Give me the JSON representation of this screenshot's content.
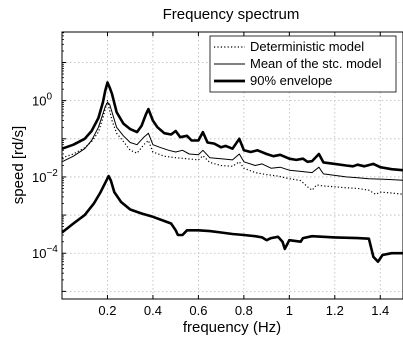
{
  "chart_data": {
    "type": "line",
    "title": "Frequency spectrum",
    "xlabel": "frequency (Hz)",
    "ylabel": "speed [rd/s]",
    "xlim": [
      0,
      1.5
    ],
    "ylim_log10": [
      -5.2,
      1.8
    ],
    "yscale": "log",
    "grid": true,
    "legend_position": "top-right",
    "x_ticks": [
      0.2,
      0.4,
      0.6,
      0.8,
      1.0,
      1.2,
      1.4
    ],
    "x_tick_labels": [
      "0.2",
      "0.4",
      "0.6",
      "0.8",
      "1",
      "1.2",
      "1.4"
    ],
    "y_ticks": [
      {
        "base": "10",
        "exp": "0",
        "value": 1
      },
      {
        "base": "10",
        "exp": "−2",
        "value": 0.01
      },
      {
        "base": "10",
        "exp": "−4",
        "value": 0.0001
      }
    ],
    "series": [
      {
        "name": "Deterministic model",
        "style": "dotted",
        "points": [
          [
            0.0,
            0.032
          ],
          [
            0.05,
            0.04
          ],
          [
            0.1,
            0.058
          ],
          [
            0.13,
            0.085
          ],
          [
            0.16,
            0.15
          ],
          [
            0.18,
            0.35
          ],
          [
            0.19,
            0.6
          ],
          [
            0.2,
            1.0
          ],
          [
            0.21,
            0.55
          ],
          [
            0.22,
            0.3
          ],
          [
            0.24,
            0.14
          ],
          [
            0.27,
            0.085
          ],
          [
            0.3,
            0.05
          ],
          [
            0.33,
            0.042
          ],
          [
            0.36,
            0.07
          ],
          [
            0.38,
            0.09
          ],
          [
            0.4,
            0.045
          ],
          [
            0.45,
            0.035
          ],
          [
            0.5,
            0.032
          ],
          [
            0.55,
            0.03
          ],
          [
            0.6,
            0.028
          ],
          [
            0.62,
            0.036
          ],
          [
            0.65,
            0.024
          ],
          [
            0.7,
            0.02
          ],
          [
            0.75,
            0.019
          ],
          [
            0.78,
            0.025
          ],
          [
            0.8,
            0.017
          ],
          [
            0.85,
            0.013
          ],
          [
            0.9,
            0.0115
          ],
          [
            0.95,
            0.0105
          ],
          [
            1.0,
            0.009
          ],
          [
            1.05,
            0.008
          ],
          [
            1.08,
            0.0055
          ],
          [
            1.1,
            0.0045
          ],
          [
            1.12,
            0.0062
          ],
          [
            1.15,
            0.0058
          ],
          [
            1.2,
            0.0055
          ],
          [
            1.25,
            0.0052
          ],
          [
            1.3,
            0.005
          ],
          [
            1.35,
            0.0045
          ],
          [
            1.38,
            0.0035
          ],
          [
            1.4,
            0.004
          ],
          [
            1.45,
            0.0038
          ],
          [
            1.5,
            0.0035
          ]
        ]
      },
      {
        "name": "Mean of the stc. model",
        "style": "solid",
        "points": [
          [
            0.0,
            0.025
          ],
          [
            0.05,
            0.035
          ],
          [
            0.1,
            0.055
          ],
          [
            0.13,
            0.09
          ],
          [
            0.16,
            0.2
          ],
          [
            0.18,
            0.45
          ],
          [
            0.19,
            0.7
          ],
          [
            0.2,
            0.9
          ],
          [
            0.21,
            0.8
          ],
          [
            0.22,
            0.5
          ],
          [
            0.24,
            0.2
          ],
          [
            0.27,
            0.12
          ],
          [
            0.3,
            0.08
          ],
          [
            0.33,
            0.07
          ],
          [
            0.36,
            0.11
          ],
          [
            0.38,
            0.14
          ],
          [
            0.4,
            0.07
          ],
          [
            0.43,
            0.06
          ],
          [
            0.47,
            0.05
          ],
          [
            0.5,
            0.045
          ],
          [
            0.53,
            0.05
          ],
          [
            0.56,
            0.04
          ],
          [
            0.6,
            0.038
          ],
          [
            0.62,
            0.05
          ],
          [
            0.65,
            0.032
          ],
          [
            0.7,
            0.03
          ],
          [
            0.75,
            0.028
          ],
          [
            0.78,
            0.04
          ],
          [
            0.8,
            0.025
          ],
          [
            0.85,
            0.02
          ],
          [
            0.88,
            0.022
          ],
          [
            0.92,
            0.017
          ],
          [
            0.96,
            0.018
          ],
          [
            1.0,
            0.015
          ],
          [
            1.05,
            0.014
          ],
          [
            1.1,
            0.013
          ],
          [
            1.13,
            0.018
          ],
          [
            1.15,
            0.012
          ],
          [
            1.2,
            0.011
          ],
          [
            1.25,
            0.01
          ],
          [
            1.3,
            0.0095
          ],
          [
            1.35,
            0.009
          ],
          [
            1.4,
            0.0088
          ],
          [
            1.45,
            0.0085
          ],
          [
            1.5,
            0.0082
          ]
        ]
      },
      {
        "name": "90% envelope",
        "style": "thick",
        "points": [
          [
            0.0,
            0.055
          ],
          [
            0.05,
            0.07
          ],
          [
            0.1,
            0.1
          ],
          [
            0.13,
            0.16
          ],
          [
            0.16,
            0.35
          ],
          [
            0.18,
            0.9
          ],
          [
            0.19,
            1.8
          ],
          [
            0.2,
            3.0
          ],
          [
            0.21,
            2.2
          ],
          [
            0.22,
            1.5
          ],
          [
            0.24,
            0.5
          ],
          [
            0.27,
            0.25
          ],
          [
            0.3,
            0.18
          ],
          [
            0.33,
            0.15
          ],
          [
            0.35,
            0.22
          ],
          [
            0.37,
            0.45
          ],
          [
            0.38,
            0.6
          ],
          [
            0.4,
            0.3
          ],
          [
            0.42,
            0.2
          ],
          [
            0.45,
            0.14
          ],
          [
            0.48,
            0.13
          ],
          [
            0.5,
            0.16
          ],
          [
            0.52,
            0.11
          ],
          [
            0.55,
            0.12
          ],
          [
            0.57,
            0.09
          ],
          [
            0.6,
            0.09
          ],
          [
            0.62,
            0.15
          ],
          [
            0.64,
            0.08
          ],
          [
            0.67,
            0.075
          ],
          [
            0.7,
            0.06
          ],
          [
            0.72,
            0.065
          ],
          [
            0.75,
            0.055
          ],
          [
            0.78,
            0.1
          ],
          [
            0.8,
            0.05
          ],
          [
            0.83,
            0.045
          ],
          [
            0.86,
            0.05
          ],
          [
            0.9,
            0.04
          ],
          [
            0.93,
            0.035
          ],
          [
            0.96,
            0.038
          ],
          [
            1.0,
            0.03
          ],
          [
            1.03,
            0.028
          ],
          [
            1.06,
            0.03
          ],
          [
            1.08,
            0.025
          ],
          [
            1.1,
            0.026
          ],
          [
            1.13,
            0.04
          ],
          [
            1.15,
            0.024
          ],
          [
            1.2,
            0.022
          ],
          [
            1.25,
            0.02
          ],
          [
            1.28,
            0.019
          ],
          [
            1.3,
            0.021
          ],
          [
            1.33,
            0.019
          ],
          [
            1.37,
            0.022
          ],
          [
            1.4,
            0.018
          ],
          [
            1.45,
            0.016
          ],
          [
            1.5,
            0.015
          ]
        ]
      },
      {
        "name": "",
        "style": "thick",
        "points": [
          [
            0.0,
            0.00035
          ],
          [
            0.05,
            0.0006
          ],
          [
            0.1,
            0.001
          ],
          [
            0.14,
            0.002
          ],
          [
            0.17,
            0.004
          ],
          [
            0.19,
            0.007
          ],
          [
            0.205,
            0.0105
          ],
          [
            0.215,
            0.008
          ],
          [
            0.23,
            0.004
          ],
          [
            0.26,
            0.0022
          ],
          [
            0.3,
            0.0014
          ],
          [
            0.35,
            0.0011
          ],
          [
            0.4,
            0.0009
          ],
          [
            0.45,
            0.0007
          ],
          [
            0.48,
            0.0006
          ],
          [
            0.5,
            0.0004
          ],
          [
            0.51,
            0.0003
          ],
          [
            0.53,
            0.0003
          ],
          [
            0.55,
            0.0004
          ],
          [
            0.6,
            0.0004
          ],
          [
            0.65,
            0.00038
          ],
          [
            0.7,
            0.00035
          ],
          [
            0.75,
            0.00032
          ],
          [
            0.8,
            0.0003
          ],
          [
            0.85,
            0.00028
          ],
          [
            0.88,
            0.00026
          ],
          [
            0.9,
            0.00022
          ],
          [
            0.92,
            0.00025
          ],
          [
            0.95,
            0.00027
          ],
          [
            0.97,
            0.0002
          ],
          [
            0.98,
            0.00013
          ],
          [
            1.0,
            0.00022
          ],
          [
            1.05,
            0.0002
          ],
          [
            1.06,
            0.00025
          ],
          [
            1.1,
            0.00028
          ],
          [
            1.2,
            0.00026
          ],
          [
            1.3,
            0.00025
          ],
          [
            1.35,
            0.00024
          ],
          [
            1.37,
            8e-05
          ],
          [
            1.39,
            6e-05
          ],
          [
            1.41,
            9e-05
          ],
          [
            1.45,
            0.0001
          ],
          [
            1.5,
            0.0001
          ]
        ]
      }
    ]
  }
}
